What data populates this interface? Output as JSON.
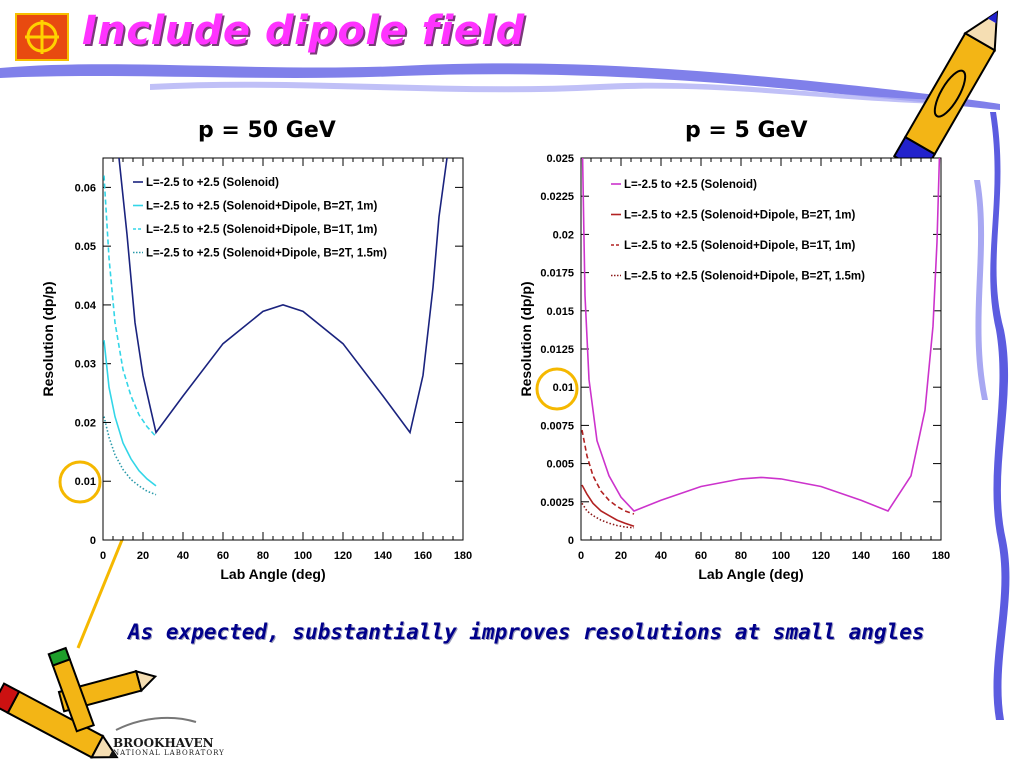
{
  "slide": {
    "title": "Include dipole field",
    "caption": "As expected, substantially improves resolutions at small angles",
    "footer_logo": "BROOKHAVEN",
    "footer_sub": "NATIONAL LABORATORY",
    "title_color": "#ff33ff",
    "caption_color": "#00008b",
    "circle_color": "#f5b800",
    "arrow_color": "#f5b800"
  },
  "icons": [
    "bnl-logo-icon",
    "pencil-icon",
    "crossed-pencils-icon",
    "brookhaven-logo-icon"
  ],
  "chart_data": [
    {
      "type": "line",
      "title": "p = 50 GeV",
      "xlabel": "Lab Angle (deg)",
      "ylabel": "Resolution (dp/p)",
      "xlim": [
        0,
        180
      ],
      "ylim": [
        0,
        0.065
      ],
      "xticks": [
        "0",
        "20",
        "40",
        "60",
        "80",
        "100",
        "120",
        "140",
        "160",
        "180"
      ],
      "yticks": [
        "0",
        "0.01",
        "0.02",
        "0.03",
        "0.04",
        "0.05",
        "0.06"
      ],
      "legend_position": "top-left",
      "highlighted_tick": "0.01",
      "series": [
        {
          "name": "L=-2.5 to +2.5 (Solenoid)",
          "color": "#1a237e",
          "style": "solid",
          "x": [
            8,
            12,
            16,
            20,
            24,
            26.5,
            40,
            60,
            80,
            90,
            100,
            120,
            140,
            153.5,
            160,
            165,
            168,
            172
          ],
          "y": [
            0.065,
            0.052,
            0.037,
            0.028,
            0.022,
            0.0183,
            0.0245,
            0.0334,
            0.0389,
            0.04,
            0.0389,
            0.0334,
            0.0245,
            0.0183,
            0.028,
            0.043,
            0.055,
            0.065
          ]
        },
        {
          "name": "L=-2.5 to +2.5 (Solenoid+Dipole, B=2T, 1m)",
          "color": "#33d6e8",
          "style": "solid",
          "x": [
            0.5,
            3,
            6,
            10,
            14,
            18,
            22,
            26.5
          ],
          "y": [
            0.034,
            0.026,
            0.021,
            0.0165,
            0.0138,
            0.0118,
            0.0104,
            0.0092
          ]
        },
        {
          "name": "L=-2.5 to +2.5 (Solenoid+Dipole, B=1T, 1m)",
          "color": "#33d6e8",
          "style": "dashed",
          "x": [
            0.5,
            3,
            6,
            10,
            14,
            18,
            22,
            26.5
          ],
          "y": [
            0.062,
            0.048,
            0.037,
            0.029,
            0.0245,
            0.0213,
            0.0193,
            0.0176
          ]
        },
        {
          "name": "L=-2.5 to +2.5 (Solenoid+Dipole, B=2T, 1.5m)",
          "color": "#2a9aaa",
          "style": "dotted",
          "x": [
            0.5,
            3,
            6,
            10,
            14,
            18,
            22,
            26.5
          ],
          "y": [
            0.021,
            0.0175,
            0.0145,
            0.012,
            0.0103,
            0.0092,
            0.0083,
            0.0077
          ]
        }
      ]
    },
    {
      "type": "line",
      "title": "p = 5 GeV",
      "xlabel": "Lab Angle (deg)",
      "ylabel": "Resolution (dp/p)",
      "xlim": [
        0,
        180
      ],
      "ylim": [
        0,
        0.025
      ],
      "xticks": [
        "0",
        "20",
        "40",
        "60",
        "80",
        "100",
        "120",
        "140",
        "160",
        "180"
      ],
      "yticks": [
        "0",
        "0.0025",
        "0.005",
        "0.0075",
        "0.01",
        "0.0125",
        "0.015",
        "0.0175",
        "0.02",
        "0.0225",
        "0.025"
      ],
      "legend_position": "top-left",
      "highlighted_tick": "0.01",
      "series": [
        {
          "name": "L=-2.5 to +2.5 (Solenoid)",
          "color": "#cc33cc",
          "style": "solid",
          "x": [
            0.8,
            2,
            4,
            8,
            14,
            20,
            26.5,
            40,
            60,
            80,
            90,
            100,
            120,
            140,
            153.5,
            165,
            172,
            176,
            178,
            179.2
          ],
          "y": [
            0.025,
            0.016,
            0.0105,
            0.0065,
            0.0042,
            0.0028,
            0.0019,
            0.0026,
            0.0035,
            0.004,
            0.0041,
            0.004,
            0.0035,
            0.0026,
            0.0019,
            0.0042,
            0.0085,
            0.014,
            0.0195,
            0.025
          ]
        },
        {
          "name": "L=-2.5 to +2.5 (Solenoid+Dipole, B=2T, 1m)",
          "color": "#b22222",
          "style": "solid",
          "x": [
            0.5,
            3,
            6,
            10,
            14,
            18,
            22,
            26.5
          ],
          "y": [
            0.0036,
            0.003,
            0.0024,
            0.0019,
            0.0016,
            0.0013,
            0.0011,
            0.0009
          ]
        },
        {
          "name": "L=-2.5 to +2.5 (Solenoid+Dipole, B=1T, 1m)",
          "color": "#b22222",
          "style": "dashed",
          "x": [
            0.5,
            3,
            6,
            10,
            14,
            18,
            22,
            26.5
          ],
          "y": [
            0.0072,
            0.0055,
            0.0042,
            0.0032,
            0.0026,
            0.0022,
            0.0019,
            0.0017
          ]
        },
        {
          "name": "L=-2.5 to +2.5 (Solenoid+Dipole, B=2T, 1.5m)",
          "color": "#8b1a1a",
          "style": "dotted",
          "x": [
            0.5,
            3,
            6,
            10,
            14,
            18,
            22,
            26.5
          ],
          "y": [
            0.0024,
            0.0019,
            0.0016,
            0.0013,
            0.0011,
            0.00095,
            0.00085,
            0.0008
          ]
        }
      ]
    }
  ]
}
